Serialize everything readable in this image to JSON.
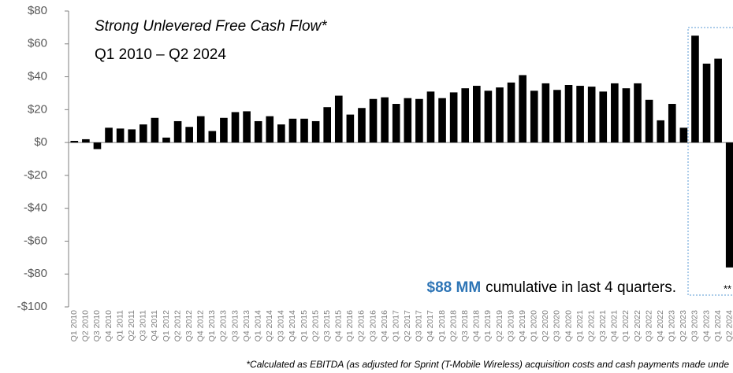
{
  "chart_data": {
    "type": "bar",
    "title": "Strong Unlevered Free Cash Flow*",
    "subtitle": "Q1 2010 – Q2 2024",
    "highlight_value": "$88 MM",
    "highlight_text": "cumulative in last 4 quarters.",
    "note": "**",
    "footnote": "*Calculated as EBITDA (as adjusted for Sprint (T-Mobile Wireless) acquisition costs and cash payments made unde",
    "color": "#000000",
    "categories": [
      "Q1 2010",
      "Q2 2010",
      "Q3 2010",
      "Q4 2010",
      "Q1 2011",
      "Q2 2011",
      "Q3 2011",
      "Q4 2011",
      "Q1 2012",
      "Q2 2012",
      "Q3 2012",
      "Q4 2012",
      "Q1 2013",
      "Q2 2013",
      "Q3 2013",
      "Q4 2013",
      "Q1 2014",
      "Q2 2014",
      "Q3 2014",
      "Q4 2014",
      "Q1 2015",
      "Q2 2015",
      "Q3 2015",
      "Q4 2015",
      "Q1 2016",
      "Q2 2016",
      "Q3 2016",
      "Q4 2016",
      "Q1 2017",
      "Q2 2017",
      "Q3 2017",
      "Q4 2017",
      "Q1 2018",
      "Q2 2018",
      "Q3 2018",
      "Q4 2018",
      "Q1 2019",
      "Q2 2019",
      "Q3 2019",
      "Q4 2019",
      "Q1 2020",
      "Q2 2020",
      "Q3 2020",
      "Q4 2020",
      "Q1 2021",
      "Q2 2021",
      "Q3 2021",
      "Q4 2021",
      "Q1 2022",
      "Q2 2022",
      "Q3 2022",
      "Q4 2022",
      "Q1 2023",
      "Q2 2023",
      "Q3 2023",
      "Q4 2023",
      "Q1 2024",
      "Q2 2024"
    ],
    "values": [
      1,
      2,
      -4,
      9,
      8.5,
      8,
      11,
      15,
      3,
      13,
      9.5,
      16,
      7,
      15,
      18.5,
      19,
      13,
      16,
      11,
      14.5,
      14.5,
      13,
      21.5,
      28.5,
      17,
      21,
      26.5,
      27.5,
      23.5,
      27,
      26.5,
      31,
      27,
      30.5,
      33,
      34.5,
      31.5,
      33.5,
      36.5,
      41,
      31.5,
      36,
      32,
      35,
      34.5,
      34,
      31,
      36,
      33,
      36,
      26,
      13.5,
      23.5,
      9,
      65,
      48,
      51,
      -76
    ],
    "ylim": [
      -100,
      80
    ],
    "yticks": [
      {
        "value": -100,
        "label": "-$100"
      },
      {
        "value": -80,
        "label": "-$80"
      },
      {
        "value": -60,
        "label": "-$60"
      },
      {
        "value": -40,
        "label": "-$40"
      },
      {
        "value": -20,
        "label": "-$20"
      },
      {
        "value": 0,
        "label": "$0"
      },
      {
        "value": 20,
        "label": "$20"
      },
      {
        "value": 40,
        "label": "$40"
      },
      {
        "value": 60,
        "label": "$60"
      },
      {
        "value": 80,
        "label": "$80"
      }
    ],
    "grid": false
  }
}
